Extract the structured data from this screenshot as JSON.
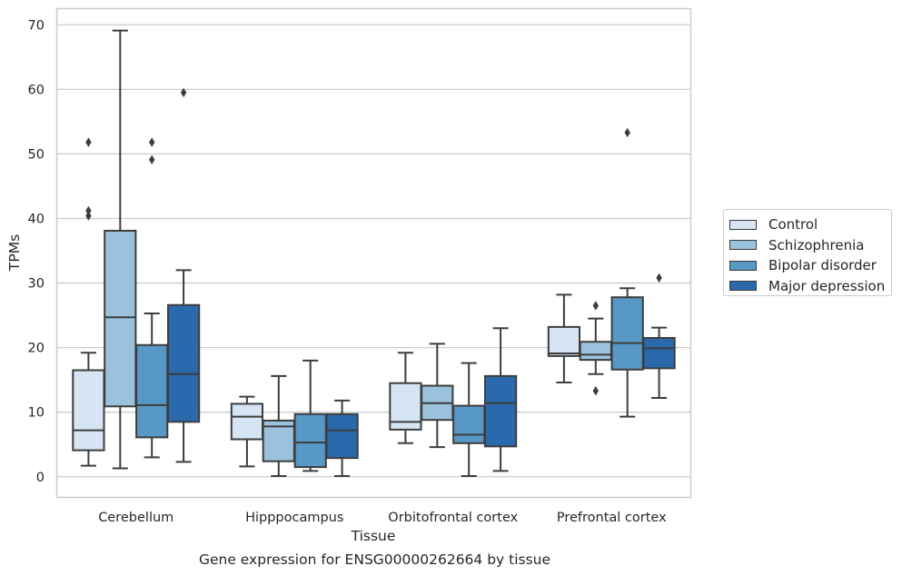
{
  "chart_data": {
    "type": "box",
    "title": "",
    "xlabel": "Tissue",
    "ylabel": "TPMs",
    "caption": "Gene expression for ENSG00000262664 by tissue",
    "ylim": [
      -3.2,
      72.5
    ],
    "yticks": [
      0,
      10,
      20,
      30,
      40,
      50,
      60,
      70
    ],
    "grid": "horizontal",
    "legend_position": "right",
    "categories": [
      "Cerebellum",
      "Hipppocampus",
      "Orbitofrontal cortex",
      "Prefrontal cortex"
    ],
    "series": [
      {
        "name": "Control",
        "color": "#d5e5f3",
        "boxes": [
          {
            "whislo": 1.7,
            "q1": 4.1,
            "med": 7.2,
            "q3": 16.5,
            "whishi": 19.2,
            "fliers": [
              40.4,
              41.2,
              51.8
            ]
          },
          {
            "whislo": 1.6,
            "q1": 5.8,
            "med": 9.3,
            "q3": 11.3,
            "whishi": 12.4,
            "fliers": []
          },
          {
            "whislo": 5.2,
            "q1": 7.3,
            "med": 8.5,
            "q3": 14.5,
            "whishi": 19.2,
            "fliers": []
          },
          {
            "whislo": 14.6,
            "q1": 18.7,
            "med": 19.1,
            "q3": 23.2,
            "whishi": 28.2,
            "fliers": []
          }
        ]
      },
      {
        "name": "Schizophrenia",
        "color": "#9bc2dc",
        "boxes": [
          {
            "whislo": 1.3,
            "q1": 10.9,
            "med": 24.7,
            "q3": 38.1,
            "whishi": 69.1,
            "fliers": []
          },
          {
            "whislo": 0.1,
            "q1": 2.4,
            "med": 7.8,
            "q3": 8.7,
            "whishi": 15.6,
            "fliers": []
          },
          {
            "whislo": 4.6,
            "q1": 8.8,
            "med": 11.4,
            "q3": 14.1,
            "whishi": 20.6,
            "fliers": []
          },
          {
            "whislo": 15.9,
            "q1": 18.1,
            "med": 18.9,
            "q3": 20.9,
            "whishi": 24.5,
            "fliers": [
              13.3,
              26.5
            ]
          }
        ]
      },
      {
        "name": "Bipolar disorder",
        "color": "#5898c6",
        "boxes": [
          {
            "whislo": 3.0,
            "q1": 6.1,
            "med": 11.1,
            "q3": 20.4,
            "whishi": 25.3,
            "fliers": [
              49.1,
              51.8
            ]
          },
          {
            "whislo": 0.9,
            "q1": 1.5,
            "med": 5.3,
            "q3": 9.7,
            "whishi": 18.0,
            "fliers": []
          },
          {
            "whislo": 0.1,
            "q1": 5.2,
            "med": 6.5,
            "q3": 11.0,
            "whishi": 17.6,
            "fliers": []
          },
          {
            "whislo": 9.3,
            "q1": 16.6,
            "med": 20.7,
            "q3": 27.8,
            "whishi": 29.2,
            "fliers": [
              53.3
            ]
          }
        ]
      },
      {
        "name": "Major depression",
        "color": "#2a6aac",
        "boxes": [
          {
            "whislo": 2.3,
            "q1": 8.5,
            "med": 15.9,
            "q3": 26.6,
            "whishi": 32.0,
            "fliers": [
              59.5
            ]
          },
          {
            "whislo": 0.1,
            "q1": 2.9,
            "med": 7.2,
            "q3": 9.7,
            "whishi": 11.8,
            "fliers": []
          },
          {
            "whislo": 0.9,
            "q1": 4.7,
            "med": 11.4,
            "q3": 15.6,
            "whishi": 23.0,
            "fliers": []
          },
          {
            "whislo": 12.2,
            "q1": 16.8,
            "med": 19.9,
            "q3": 21.5,
            "whishi": 23.1,
            "fliers": [
              30.8
            ]
          }
        ]
      }
    ]
  }
}
